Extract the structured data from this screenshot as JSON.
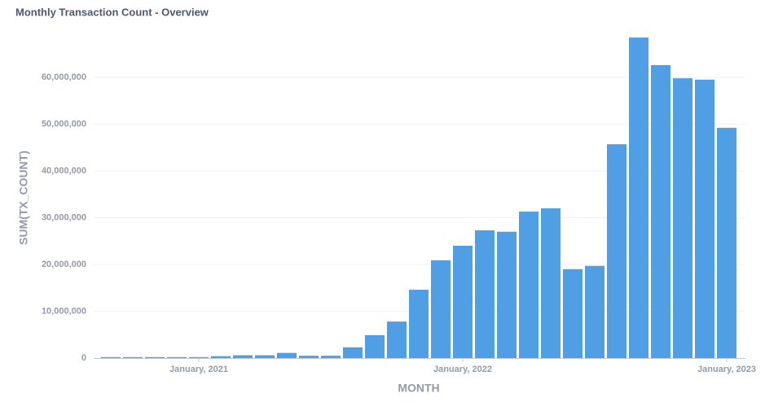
{
  "chart_data": {
    "type": "bar",
    "title": "Monthly Transaction Count - Overview",
    "x_label": "MONTH",
    "y_label": "SUM(TX_COUNT)",
    "categories": [
      null,
      null,
      null,
      null,
      "January, 2021",
      null,
      null,
      null,
      null,
      null,
      null,
      null,
      null,
      null,
      null,
      null,
      "January, 2022",
      null,
      null,
      null,
      null,
      null,
      null,
      null,
      null,
      null,
      null,
      null,
      "January, 2023"
    ],
    "values": [
      200000,
      200000,
      200000,
      200000,
      200000,
      400000,
      600000,
      600000,
      1100000,
      500000,
      500000,
      2300000,
      4900000,
      7800000,
      14600000,
      20900000,
      24000000,
      27300000,
      27000000,
      31300000,
      32000000,
      19000000,
      19700000,
      45700000,
      68500000,
      62600000,
      59800000,
      59500000,
      49200000
    ],
    "color": "#509ee3",
    "ylim": [
      0,
      70000000
    ],
    "yticks": [
      0,
      {
        "value": 10000000,
        "label": "10,000,000"
      },
      {
        "value": 20000000,
        "label": "20,000,000"
      },
      {
        "value": 30000000,
        "label": "30,000,000"
      },
      {
        "value": 40000000,
        "label": "40,000,000"
      },
      {
        "value": 50000000,
        "label": "50,000,000"
      },
      {
        "value": 60000000,
        "label": "60,000,000"
      }
    ],
    "grid": true
  }
}
